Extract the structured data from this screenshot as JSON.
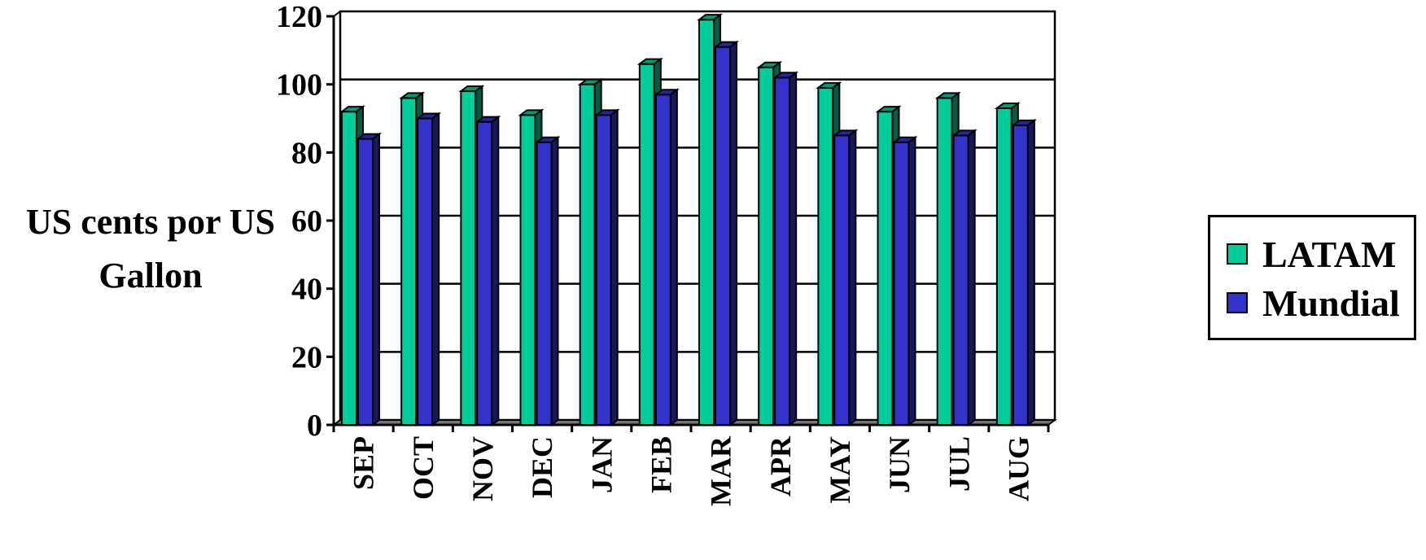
{
  "chart_data": {
    "type": "bar",
    "title": "",
    "xlabel": "",
    "ylabel_lines": [
      "US cents por US",
      "Gallon"
    ],
    "categories": [
      "SEP",
      "OCT",
      "NOV",
      "DEC",
      "JAN",
      "FEB",
      "MAR",
      "APR",
      "MAY",
      "JUN",
      "JUL",
      "AUG"
    ],
    "series": [
      {
        "name": "LATAM",
        "color": "#00cc99",
        "values": [
          92,
          96,
          98,
          91,
          100,
          106,
          119,
          105,
          99,
          92,
          96,
          93
        ]
      },
      {
        "name": "Mundial",
        "color": "#3333cc",
        "values": [
          84,
          90,
          89,
          83,
          91,
          97,
          111,
          102,
          85,
          83,
          85,
          88
        ]
      }
    ],
    "ylim": [
      0,
      120
    ],
    "yticks": [
      0,
      20,
      40,
      60,
      80,
      100,
      120
    ],
    "grid": true,
    "legend_position": "right"
  }
}
